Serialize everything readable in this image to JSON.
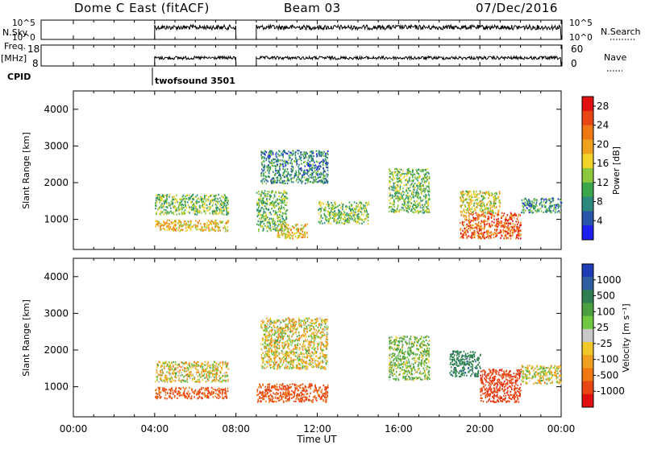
{
  "header": {
    "title": "Dome C East (fitACF)",
    "beam": "Beam 03",
    "date": "07/Dec/2016"
  },
  "strip_labels": {
    "nsky": "N.Sky",
    "nsky_ticks": [
      "10^5",
      "10^0"
    ],
    "nsearch": "N.Search",
    "nsearch_ticks": [
      "10^5",
      "10^0"
    ],
    "freq": "Freq.",
    "freq_unit": "[MHz]",
    "freq_ticks": [
      "18",
      "8"
    ],
    "nave": "Nave",
    "nave_ticks": [
      "60",
      "0"
    ],
    "cpid": "CPID",
    "cpid_value": "twofsound 3501"
  },
  "x_axis": {
    "label": "Time UT",
    "ticks": [
      "00:00",
      "04:00",
      "08:00",
      "12:00",
      "16:00",
      "20:00",
      "00:00"
    ]
  },
  "chart_data": [
    {
      "type": "heatmap",
      "title": "",
      "xlabel": "Time UT",
      "ylabel": "Slant Range [km]",
      "ylim": [
        180,
        4500
      ],
      "xlim_hours": [
        0,
        24
      ],
      "y_ticks": [
        "1000",
        "2000",
        "3000",
        "4000"
      ],
      "colorbar": {
        "label": "Power [dB]",
        "ticks": [
          "4",
          "8",
          "12",
          "16",
          "20",
          "24",
          "28"
        ],
        "colors": [
          "#1e1ef0",
          "#2855a8",
          "#2f8a7e",
          "#3ca64a",
          "#8cc83c",
          "#f0d228",
          "#f0a21e",
          "#f07814",
          "#e84614",
          "#e01010"
        ]
      },
      "data_gaps_hours": [
        [
          0,
          4
        ],
        [
          8,
          9
        ]
      ],
      "regions": [
        {
          "t": [
            4.0,
            7.6
          ],
          "r": [
            700,
            1000
          ],
          "value_db": 18
        },
        {
          "t": [
            4.0,
            7.6
          ],
          "r": [
            1150,
            1700
          ],
          "value_db": 12
        },
        {
          "t": [
            9.0,
            10.5
          ],
          "r": [
            700,
            1800
          ],
          "value_db": 12
        },
        {
          "t": [
            9.2,
            12.5
          ],
          "r": [
            2000,
            2900
          ],
          "value_db": 8
        },
        {
          "t": [
            10.0,
            11.5
          ],
          "r": [
            500,
            900
          ],
          "value_db": 18
        },
        {
          "t": [
            12.0,
            14.5
          ],
          "r": [
            900,
            1500
          ],
          "value_db": 12
        },
        {
          "t": [
            15.5,
            17.5
          ],
          "r": [
            1200,
            2400
          ],
          "value_db": 12
        },
        {
          "t": [
            19.0,
            22.0
          ],
          "r": [
            500,
            1200
          ],
          "value_db": 24
        },
        {
          "t": [
            19.0,
            21.0
          ],
          "r": [
            1200,
            1800
          ],
          "value_db": 16
        },
        {
          "t": [
            22.0,
            24.0
          ],
          "r": [
            1200,
            1600
          ],
          "value_db": 8
        }
      ]
    },
    {
      "type": "heatmap",
      "title": "",
      "xlabel": "Time UT",
      "ylabel": "Slant Range [km]",
      "ylim": [
        180,
        4500
      ],
      "xlim_hours": [
        0,
        24
      ],
      "y_ticks": [
        "1000",
        "2000",
        "3000",
        "4000"
      ],
      "colorbar": {
        "label": "Velocity [m s⁻¹]",
        "ticks": [
          "1000",
          "500",
          "100",
          "25",
          "-25",
          "-100",
          "-500",
          "-1000"
        ],
        "colors": [
          "#1e3cb4",
          "#2f5fa0",
          "#2f8050",
          "#4aa040",
          "#70c840",
          "#c8c8c8",
          "#f0c828",
          "#f0a01e",
          "#f07814",
          "#e84614",
          "#e01010"
        ]
      },
      "data_gaps_hours": [
        [
          0,
          4
        ],
        [
          8,
          9
        ]
      ],
      "regions": [
        {
          "t": [
            4.0,
            7.6
          ],
          "r": [
            700,
            1000
          ],
          "value_ms": -300
        },
        {
          "t": [
            4.0,
            7.6
          ],
          "r": [
            1150,
            1700
          ],
          "value_ms": 0
        },
        {
          "t": [
            9.0,
            12.5
          ],
          "r": [
            600,
            1100
          ],
          "value_ms": -300
        },
        {
          "t": [
            9.2,
            12.5
          ],
          "r": [
            1500,
            2900
          ],
          "value_ms": 0
        },
        {
          "t": [
            15.5,
            17.5
          ],
          "r": [
            1200,
            2400
          ],
          "value_ms": 100
        },
        {
          "t": [
            18.5,
            20.0
          ],
          "r": [
            1300,
            2000
          ],
          "value_ms": 400
        },
        {
          "t": [
            20.0,
            22.0
          ],
          "r": [
            600,
            1500
          ],
          "value_ms": -400
        },
        {
          "t": [
            22.0,
            24.0
          ],
          "r": [
            1100,
            1600
          ],
          "value_ms": 20
        }
      ]
    }
  ]
}
